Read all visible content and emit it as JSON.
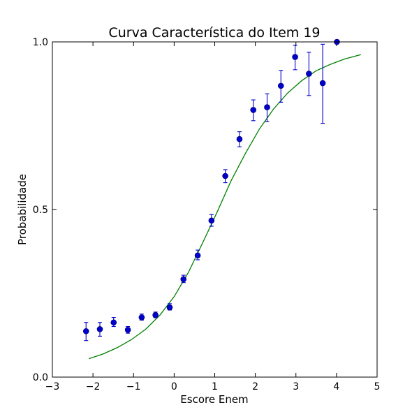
{
  "chart_data": {
    "type": "scatter",
    "title": "Curva Característica do Item 19",
    "xlabel": "Escore Enem",
    "ylabel": "Probabilidade",
    "xlim": [
      -3,
      5
    ],
    "ylim": [
      0,
      1
    ],
    "xticks": [
      -3,
      -2,
      -1,
      0,
      1,
      2,
      3,
      4,
      5
    ],
    "xtick_labels": [
      "−3",
      "−2",
      "−1",
      "0",
      "1",
      "2",
      "3",
      "4",
      "5"
    ],
    "yticks": [
      0,
      0.5,
      1
    ],
    "ytick_labels": [
      "0.0",
      "0.5",
      "1.0"
    ],
    "grid": false,
    "colors": {
      "points": "#0000cc",
      "curve": "#008000"
    },
    "series": [
      {
        "kind": "points_with_error",
        "points": [
          {
            "x": -2.17,
            "y": 0.137,
            "lo": 0.109,
            "hi": 0.163
          },
          {
            "x": -1.83,
            "y": 0.143,
            "lo": 0.122,
            "hi": 0.163
          },
          {
            "x": -1.49,
            "y": 0.163,
            "lo": 0.151,
            "hi": 0.178
          },
          {
            "x": -1.14,
            "y": 0.141,
            "lo": 0.131,
            "hi": 0.151
          },
          {
            "x": -0.8,
            "y": 0.178,
            "lo": 0.17,
            "hi": 0.188
          },
          {
            "x": -0.46,
            "y": 0.185,
            "lo": 0.177,
            "hi": 0.194
          },
          {
            "x": -0.11,
            "y": 0.208,
            "lo": 0.2,
            "hi": 0.219
          },
          {
            "x": 0.23,
            "y": 0.292,
            "lo": 0.282,
            "hi": 0.304
          },
          {
            "x": 0.58,
            "y": 0.363,
            "lo": 0.35,
            "hi": 0.379
          },
          {
            "x": 0.92,
            "y": 0.467,
            "lo": 0.45,
            "hi": 0.485
          },
          {
            "x": 1.26,
            "y": 0.6,
            "lo": 0.58,
            "hi": 0.619
          },
          {
            "x": 1.61,
            "y": 0.71,
            "lo": 0.687,
            "hi": 0.732
          },
          {
            "x": 1.95,
            "y": 0.797,
            "lo": 0.765,
            "hi": 0.827
          },
          {
            "x": 2.29,
            "y": 0.805,
            "lo": 0.762,
            "hi": 0.845
          },
          {
            "x": 2.63,
            "y": 0.869,
            "lo": 0.82,
            "hi": 0.915
          },
          {
            "x": 2.98,
            "y": 0.955,
            "lo": 0.917,
            "hi": 0.99
          },
          {
            "x": 3.32,
            "y": 0.905,
            "lo": 0.84,
            "hi": 0.969
          },
          {
            "x": 3.66,
            "y": 0.877,
            "lo": 0.757,
            "hi": 0.993
          },
          {
            "x": 4.01,
            "y": 1.0,
            "lo": 1.0,
            "hi": 1.0
          }
        ]
      },
      {
        "kind": "curve",
        "x": [
          -2.1,
          -1.75,
          -1.4,
          -1.05,
          -0.7,
          -0.35,
          0.0,
          0.35,
          0.7,
          1.05,
          1.4,
          1.75,
          2.1,
          2.45,
          2.8,
          3.15,
          3.5,
          3.85,
          4.2,
          4.6
        ],
        "y": [
          0.055,
          0.069,
          0.088,
          0.112,
          0.143,
          0.185,
          0.24,
          0.312,
          0.4,
          0.49,
          0.585,
          0.666,
          0.74,
          0.8,
          0.848,
          0.885,
          0.914,
          0.933,
          0.949,
          0.962
        ]
      }
    ]
  }
}
